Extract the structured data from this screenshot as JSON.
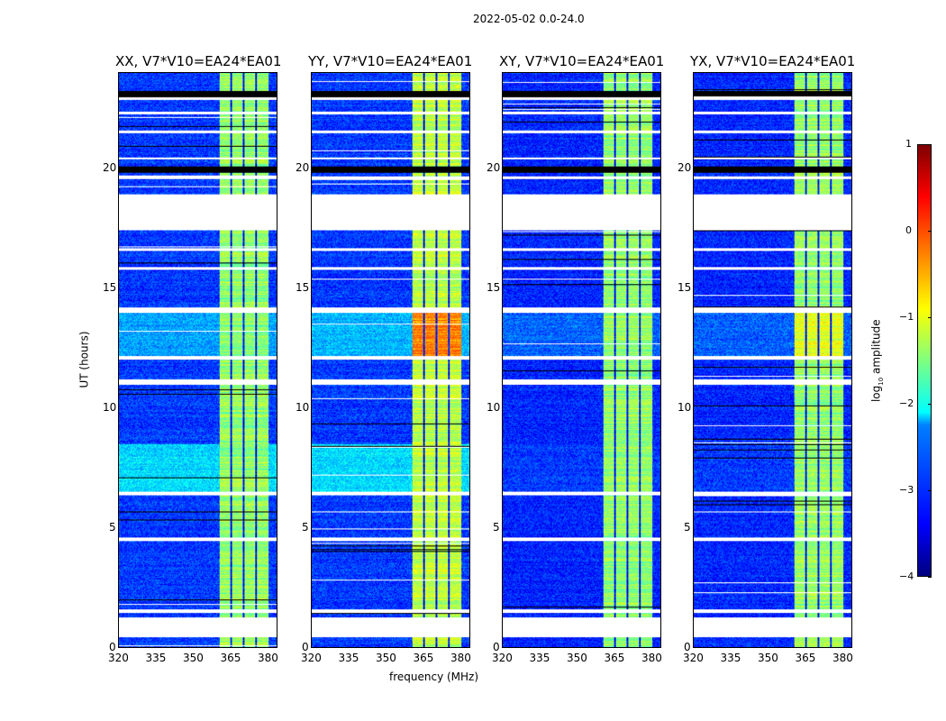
{
  "chart_data": {
    "type": "heatmap",
    "title": "2022-05-02 0.0-24.0",
    "xlabel": "frequency (MHz)",
    "ylabel": "UT (hours)",
    "xlim": [
      320,
      384
    ],
    "ylim": [
      0,
      24
    ],
    "xticks": [
      "320",
      "335",
      "350",
      "365",
      "380"
    ],
    "xtick_values": [
      320,
      335,
      350,
      365,
      380
    ],
    "yticks": [
      "0",
      "5",
      "10",
      "15",
      "20"
    ],
    "ytick_values": [
      0,
      5,
      10,
      15,
      20
    ],
    "band_MHz": [
      360.5,
      380.5
    ],
    "band_gaps_MHz": [
      365.2,
      370.3,
      375.4
    ],
    "flagged_hours": [
      [
        0.45,
        1.25
      ],
      [
        1.45,
        1.6
      ],
      [
        4.45,
        4.6
      ],
      [
        6.35,
        6.5
      ],
      [
        11.0,
        11.2
      ],
      [
        12.05,
        12.2
      ],
      [
        14.0,
        14.2
      ],
      [
        15.8,
        15.9
      ],
      [
        16.6,
        16.7
      ],
      [
        17.45,
        18.95
      ],
      [
        19.6,
        19.7
      ],
      [
        20.4,
        20.5
      ],
      [
        21.5,
        21.6
      ],
      [
        22.3,
        22.4
      ],
      [
        22.9,
        23.0
      ]
    ],
    "black_rows_hours": [
      [
        19.85,
        20.1
      ],
      [
        23.0,
        23.25
      ]
    ],
    "panels": [
      {
        "title": "XX, V7*V10=EA24*EA01",
        "background": -3.1,
        "band": -1.4,
        "bright": {
          "hours": [
            12.1,
            14.0
          ],
          "band": -1.5,
          "background": -2.6
        },
        "cyan_hours": [
          6.5,
          8.5
        ],
        "cyan": -2.3
      },
      {
        "title": "YY, V7*V10=EA24*EA01",
        "background": -3.1,
        "band": -1.2,
        "bright": {
          "hours": [
            12.1,
            14.0
          ],
          "band": -0.3,
          "background": -2.5
        },
        "cyan_hours": [
          6.5,
          8.5
        ],
        "cyan": -2.3
      },
      {
        "title": "XY, V7*V10=EA24*EA01",
        "background": -3.2,
        "band": -1.4,
        "bright": {
          "hours": [
            12.1,
            14.0
          ],
          "band": -1.4,
          "background": -2.9
        },
        "cyan_hours": [
          6.5,
          8.5
        ],
        "cyan": -3.1
      },
      {
        "title": "YX, V7*V10=EA24*EA01",
        "background": -3.2,
        "band": -1.4,
        "bright": {
          "hours": [
            12.1,
            14.0
          ],
          "band": -1.0,
          "background": -2.9
        },
        "cyan_hours": [
          6.5,
          8.5
        ],
        "cyan": -3.1
      }
    ],
    "colorbar": {
      "label": "log10 amplitude",
      "label_main": "log",
      "label_sub": "10",
      "label_rest": " amplitude",
      "range": [
        -4,
        1
      ],
      "ticks": [
        "1",
        "0",
        "−1",
        "−2",
        "−3",
        "−4"
      ],
      "tick_values": [
        1,
        0,
        -1,
        -2,
        -3,
        -4
      ],
      "colormap": "jet"
    }
  }
}
